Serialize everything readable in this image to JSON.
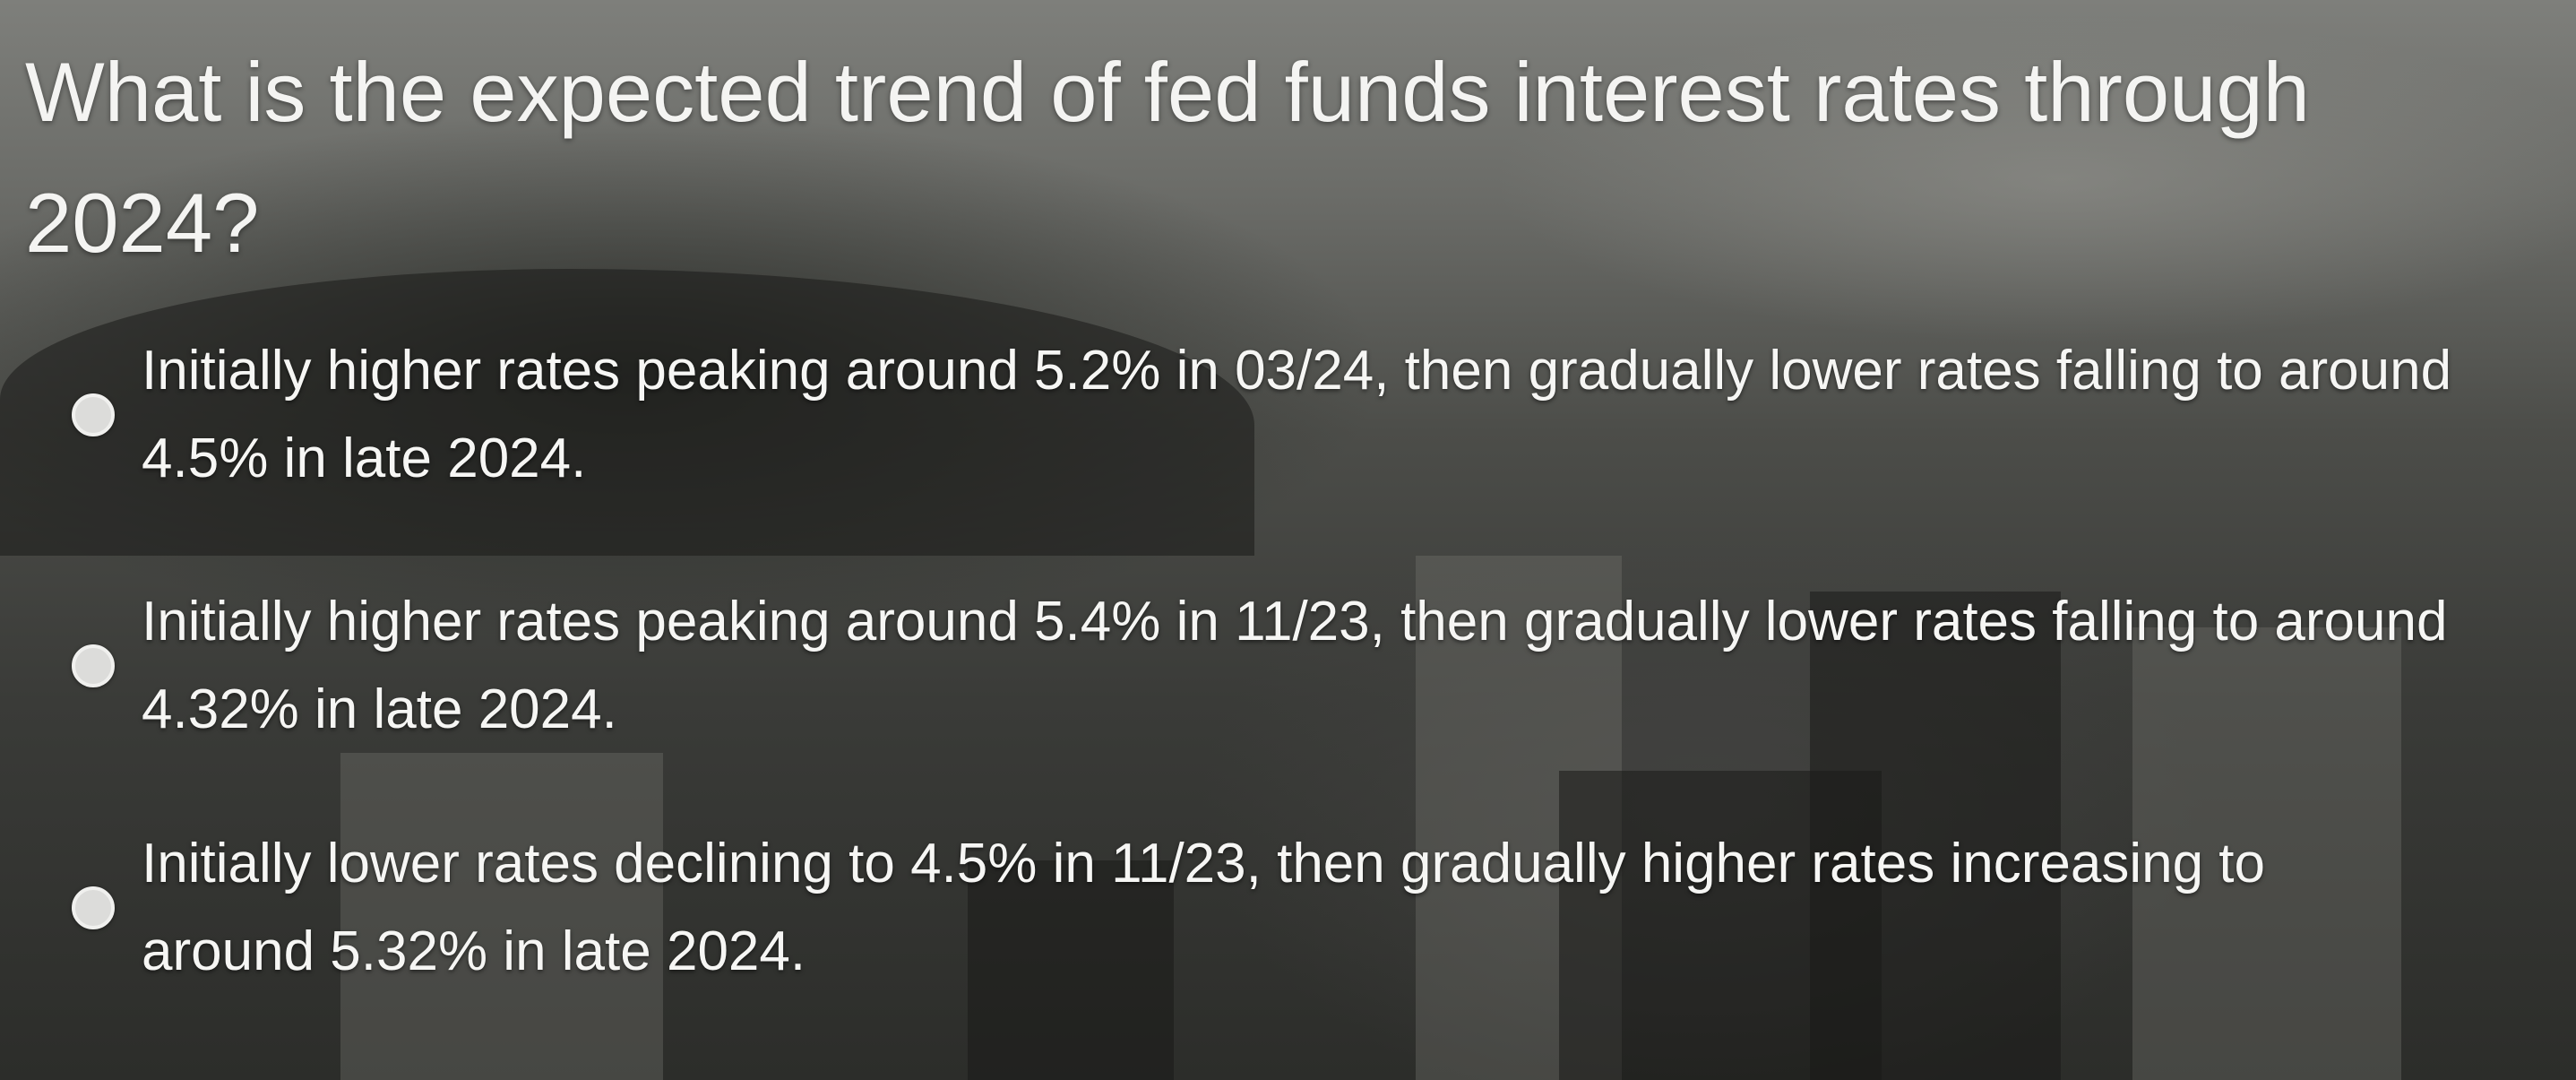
{
  "question": "What is the expected trend of fed funds interest rates through 2024?",
  "options": [
    "Initially higher rates peaking around 5.2% in 03/24, then gradually lower rates falling to around 4.5% in late 2024.",
    "Initially higher rates peaking around 5.4% in 11/23, then gradually lower rates falling to around 4.32% in late 2024.",
    "Initially lower rates declining to 4.5% in 11/23, then gradually higher rates increasing to around 5.32% in late 2024."
  ]
}
